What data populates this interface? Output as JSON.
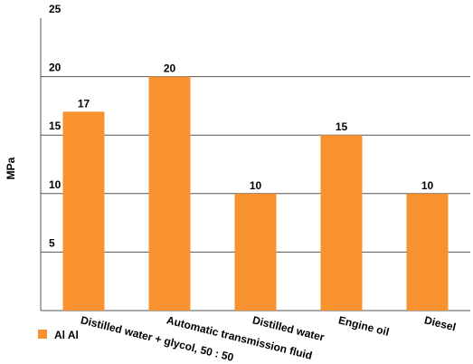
{
  "chart_data": {
    "type": "bar",
    "ylabel": "MPa",
    "xlabel": "",
    "ylim": [
      0,
      25
    ],
    "yticks": [
      5,
      10,
      15,
      20,
      25
    ],
    "grid": true,
    "legend_position": "bottom-left",
    "categories": [
      "Distilled water + glycol, 50 : 50",
      "Automatic transmission fluid",
      "Distilled water",
      "Engine oil",
      "Diesel"
    ],
    "series": [
      {
        "name": "Al Al",
        "values": [
          17,
          20,
          10,
          15,
          10
        ],
        "color": "#f7922e"
      }
    ]
  }
}
